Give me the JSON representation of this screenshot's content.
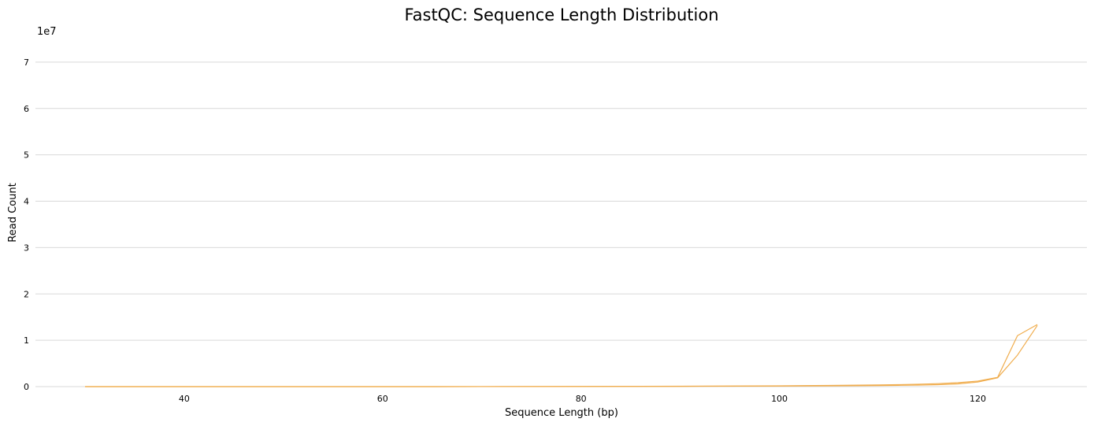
{
  "chart_data": {
    "type": "line",
    "title": "FastQC: Sequence Length Distribution",
    "xlabel": "Sequence Length (bp)",
    "ylabel": "Read Count",
    "y_exponent_label": "1e7",
    "xlim": [
      25,
      131
    ],
    "ylim": [
      0,
      80000000
    ],
    "x_ticks": [
      40,
      60,
      80,
      100,
      120
    ],
    "y_ticks": [
      0,
      10000000,
      20000000,
      30000000,
      40000000,
      50000000,
      60000000,
      70000000
    ],
    "y_tick_labels": [
      "0",
      "1",
      "2",
      "3",
      "4",
      "5",
      "6",
      "7"
    ],
    "grid": true,
    "grid_axis": "y",
    "color": "#f0ad4e",
    "series": [
      {
        "x": [
          30,
          40,
          50,
          60,
          65,
          70,
          80,
          90,
          100,
          105,
          110,
          112,
          114,
          116,
          118,
          120,
          122,
          124,
          126
        ],
        "y": [
          0,
          0,
          0,
          0,
          5000,
          10000,
          30000,
          60000,
          120000,
          170000,
          230000,
          280000,
          330000,
          420000,
          600000,
          1000000,
          1900000,
          6800000,
          13200000
        ]
      },
      {
        "x": [
          30,
          40,
          50,
          60,
          65,
          70,
          80,
          90,
          100,
          105,
          110,
          112,
          114,
          116,
          118,
          120,
          122,
          124,
          126
        ],
        "y": [
          0,
          0,
          0,
          0,
          5000,
          12000,
          40000,
          90000,
          180000,
          260000,
          360000,
          420000,
          520000,
          650000,
          850000,
          1200000,
          2000000,
          11000000,
          13400000
        ]
      }
    ]
  }
}
